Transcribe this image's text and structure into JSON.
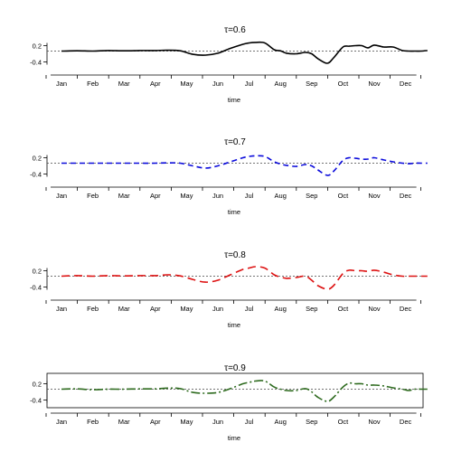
{
  "chart_data": [
    {
      "type": "line",
      "title": "τ=0.6",
      "xlabel": "time",
      "ylabel": "",
      "categories": [
        "Jan",
        "Feb",
        "Mar",
        "Apr",
        "May",
        "Jun",
        "Jul",
        "Aug",
        "Sep",
        "Oct",
        "Nov",
        "Dec"
      ],
      "yticks": [
        "0.2",
        "-0.4"
      ],
      "ylim": [
        -0.55,
        0.45
      ],
      "reference_line": 0,
      "box": false,
      "style": {
        "color": "#000000",
        "dash": "none",
        "width": 1.6
      },
      "x": [
        0,
        0.5,
        1,
        1.5,
        2,
        2.5,
        3,
        3.4,
        3.8,
        4.2,
        4.6,
        5,
        5.4,
        5.8,
        6,
        6.2,
        6.5,
        6.8,
        7,
        7.2,
        7.5,
        7.8,
        8,
        8.2,
        8.5,
        8.7,
        9,
        9.2,
        9.4,
        9.6,
        9.8,
        10,
        10.3,
        10.6,
        10.9,
        11.1,
        11.3,
        11.5,
        11.7
      ],
      "y": [
        0,
        0.01,
        0,
        0.02,
        0.01,
        0.02,
        0.02,
        0.03,
        0.01,
        -0.12,
        -0.15,
        -0.08,
        0.1,
        0.25,
        0.3,
        0.32,
        0.3,
        0.05,
        0.01,
        -0.08,
        -0.1,
        -0.05,
        -0.1,
        -0.28,
        -0.45,
        -0.25,
        0.15,
        0.18,
        0.2,
        0.2,
        0.12,
        0.22,
        0.15,
        0.15,
        0.02,
        0,
        0,
        0,
        0.02
      ]
    },
    {
      "type": "line",
      "title": "τ=0.7",
      "xlabel": "time",
      "ylabel": "",
      "categories": [
        "Jan",
        "Feb",
        "Mar",
        "Apr",
        "May",
        "Jun",
        "Jul",
        "Aug",
        "Sep",
        "Oct",
        "Nov",
        "Dec"
      ],
      "yticks": [
        "0.2",
        "-0.4"
      ],
      "ylim": [
        -0.55,
        0.45
      ],
      "reference_line": 0,
      "box": false,
      "style": {
        "color": "#0a0adb",
        "dash": "6,4",
        "width": 1.6
      },
      "x": [
        0,
        0.5,
        1,
        1.5,
        2,
        2.5,
        3,
        3.4,
        3.8,
        4.2,
        4.6,
        5,
        5.4,
        5.8,
        6,
        6.2,
        6.5,
        6.8,
        7,
        7.2,
        7.5,
        7.8,
        8,
        8.2,
        8.5,
        8.7,
        9,
        9.2,
        9.4,
        9.6,
        9.8,
        10,
        10.3,
        10.6,
        10.9,
        11.1,
        11.3,
        11.5,
        11.7
      ],
      "y": [
        0,
        0,
        0,
        0,
        0,
        0,
        0,
        0.01,
        0,
        -0.1,
        -0.18,
        -0.1,
        0.05,
        0.2,
        0.25,
        0.27,
        0.25,
        0.05,
        -0.03,
        -0.08,
        -0.12,
        -0.05,
        -0.1,
        -0.25,
        -0.45,
        -0.3,
        0.1,
        0.2,
        0.18,
        0.15,
        0.15,
        0.2,
        0.12,
        0.05,
        0,
        -0.02,
        0,
        0,
        0
      ]
    },
    {
      "type": "line",
      "title": "τ=0.8",
      "xlabel": "time",
      "ylabel": "",
      "categories": [
        "Jan",
        "Feb",
        "Mar",
        "Apr",
        "May",
        "Jun",
        "Jul",
        "Aug",
        "Sep",
        "Oct",
        "Nov",
        "Dec"
      ],
      "yticks": [
        "0.2",
        "-0.4"
      ],
      "ylim": [
        -0.55,
        0.45
      ],
      "reference_line": 0,
      "box": false,
      "style": {
        "color": "#dd1111",
        "dash": "9,5",
        "width": 1.6
      },
      "x": [
        0,
        0.5,
        1,
        1.5,
        2,
        2.5,
        3,
        3.4,
        3.8,
        4.2,
        4.6,
        5,
        5.4,
        5.8,
        6,
        6.2,
        6.5,
        6.8,
        7,
        7.2,
        7.5,
        7.8,
        8,
        8.2,
        8.5,
        8.7,
        9,
        9.2,
        9.4,
        9.6,
        9.8,
        10,
        10.3,
        10.6,
        10.9,
        11.1,
        11.3,
        11.5,
        11.7
      ],
      "y": [
        0,
        0.02,
        0,
        0.02,
        0.01,
        0.02,
        0.02,
        0.05,
        0.01,
        -0.12,
        -0.22,
        -0.15,
        0.05,
        0.25,
        0.3,
        0.35,
        0.3,
        0.05,
        -0.03,
        -0.08,
        -0.05,
        0,
        -0.15,
        -0.35,
        -0.48,
        -0.35,
        0.1,
        0.22,
        0.2,
        0.2,
        0.18,
        0.22,
        0.15,
        0.05,
        0,
        0,
        0,
        0,
        0
      ]
    },
    {
      "type": "line",
      "title": "τ=0.9",
      "xlabel": "time",
      "ylabel": "",
      "categories": [
        "Jan",
        "Feb",
        "Mar",
        "Apr",
        "May",
        "Jun",
        "Jul",
        "Aug",
        "Sep",
        "Oct",
        "Nov",
        "Dec"
      ],
      "yticks": [
        "0.2",
        "-0.4"
      ],
      "ylim": [
        -0.55,
        0.45
      ],
      "reference_line": 0,
      "box": true,
      "style": {
        "color": "#2e6b1f",
        "dash": "10,3,2,3",
        "width": 1.6
      },
      "x": [
        0,
        0.5,
        1,
        1.5,
        2,
        2.5,
        3,
        3.4,
        3.8,
        4.2,
        4.6,
        5,
        5.4,
        5.8,
        6,
        6.2,
        6.5,
        6.8,
        7,
        7.2,
        7.5,
        7.8,
        8,
        8.2,
        8.5,
        8.7,
        9,
        9.2,
        9.4,
        9.6,
        9.8,
        10,
        10.3,
        10.6,
        10.9,
        11.1,
        11.3,
        11.5,
        11.7
      ],
      "y": [
        0,
        0.01,
        -0.02,
        0,
        0,
        0.01,
        0.01,
        0.04,
        0.02,
        -0.12,
        -0.15,
        -0.12,
        0.02,
        0.2,
        0.25,
        0.3,
        0.3,
        0.08,
        0,
        -0.05,
        -0.05,
        0.02,
        -0.1,
        -0.3,
        -0.45,
        -0.3,
        0.08,
        0.22,
        0.2,
        0.2,
        0.15,
        0.15,
        0.12,
        0.05,
        0,
        -0.05,
        0,
        0,
        0
      ]
    }
  ]
}
